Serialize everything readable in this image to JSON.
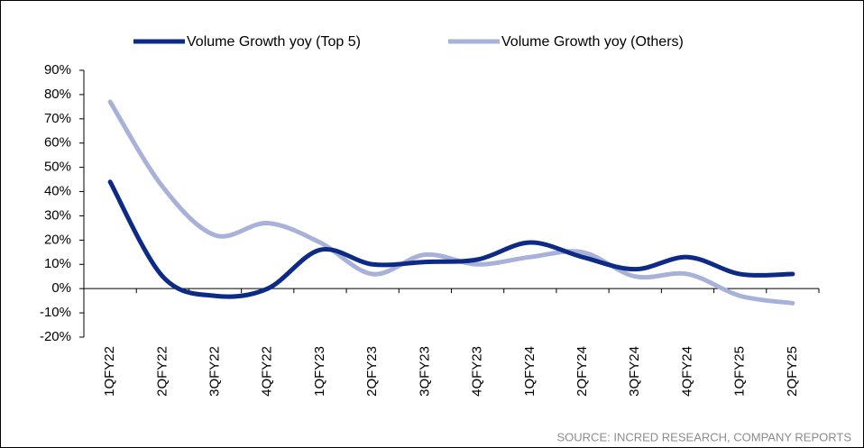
{
  "chart_data": {
    "type": "line",
    "categories": [
      "1QFY22",
      "2QFY22",
      "3QFY22",
      "4QFY22",
      "1QFY23",
      "2QFY23",
      "3QFY23",
      "4QFY23",
      "1QFY24",
      "2QFY24",
      "3QFY24",
      "4QFY24",
      "1QFY25",
      "2QFY25"
    ],
    "series": [
      {
        "name": "Volume Growth yoy (Top 5)",
        "color": "#0d2a86",
        "values": [
          44,
          5,
          -3,
          0,
          16,
          10,
          11,
          12,
          19,
          13,
          8,
          13,
          6,
          6
        ]
      },
      {
        "name": "Volume Growth yoy (Others)",
        "color": "#a8b2d8",
        "values": [
          77,
          42,
          22,
          27,
          19,
          6,
          14,
          10,
          13,
          15,
          5,
          6,
          -3,
          -6
        ]
      }
    ],
    "ylim": [
      -20,
      90
    ],
    "yticks": [
      {
        "value": -20,
        "label": "-20%"
      },
      {
        "value": -10,
        "label": "-10%"
      },
      {
        "value": 0,
        "label": "0%"
      },
      {
        "value": 10,
        "label": "10%"
      },
      {
        "value": 20,
        "label": "20%"
      },
      {
        "value": 30,
        "label": "30%"
      },
      {
        "value": 40,
        "label": "40%"
      },
      {
        "value": 50,
        "label": "50%"
      },
      {
        "value": 60,
        "label": "60%"
      },
      {
        "value": 70,
        "label": "70%"
      },
      {
        "value": 80,
        "label": "80%"
      },
      {
        "value": 90,
        "label": "90%"
      }
    ],
    "legend": "top",
    "source": "SOURCE: INCRED RESEARCH, COMPANY REPORTS"
  }
}
